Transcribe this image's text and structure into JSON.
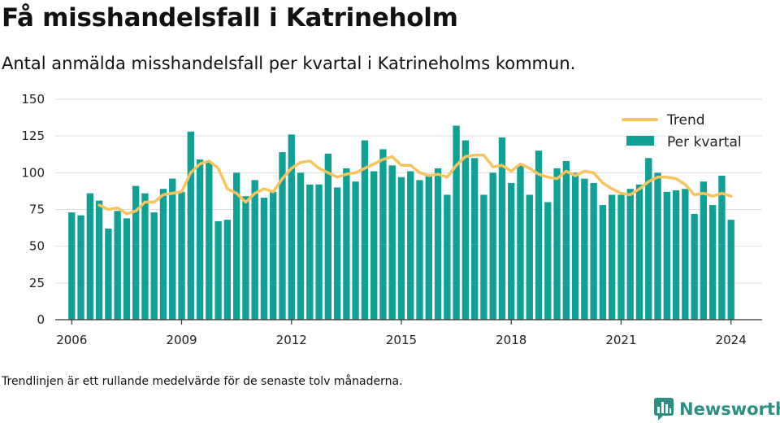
{
  "title": "Få misshandelsfall i Katrineholm",
  "subtitle": "Antal anmälda misshandelsfall per kvartal i Katrineholms kommun.",
  "footnote": "Trendlinjen är ett rullande medelvärde för de senaste tolv månaderna.",
  "brand": "Newsworthy",
  "colors": {
    "bar": "#0fa195",
    "trend": "#f7c55c",
    "grid": "#dddddd",
    "axis": "#333333"
  },
  "chart_data": {
    "type": "bar",
    "title": "Få misshandelsfall i Katrineholm",
    "ylim": [
      0,
      150
    ],
    "yticks": [
      0,
      25,
      50,
      75,
      100,
      125,
      150
    ],
    "xlim": [
      2005.55,
      2024.85
    ],
    "xticks": [
      "2006",
      "2009",
      "2012",
      "2015",
      "2018",
      "2021",
      "2024"
    ],
    "legend": "top-right",
    "grid": "horizontal",
    "x": [
      2006.0,
      2006.25,
      2006.5,
      2006.75,
      2007.0,
      2007.25,
      2007.5,
      2007.75,
      2008.0,
      2008.25,
      2008.5,
      2008.75,
      2009.0,
      2009.25,
      2009.5,
      2009.75,
      2010.0,
      2010.25,
      2010.5,
      2010.75,
      2011.0,
      2011.25,
      2011.5,
      2011.75,
      2012.0,
      2012.25,
      2012.5,
      2012.75,
      2013.0,
      2013.25,
      2013.5,
      2013.75,
      2014.0,
      2014.25,
      2014.5,
      2014.75,
      2015.0,
      2015.25,
      2015.5,
      2015.75,
      2016.0,
      2016.25,
      2016.5,
      2016.75,
      2017.0,
      2017.25,
      2017.5,
      2017.75,
      2018.0,
      2018.25,
      2018.5,
      2018.75,
      2019.0,
      2019.25,
      2019.5,
      2019.75,
      2020.0,
      2020.25,
      2020.5,
      2020.75,
      2021.0,
      2021.25,
      2021.5,
      2021.75,
      2022.0,
      2022.25,
      2022.5,
      2022.75,
      2023.0,
      2023.25,
      2023.5,
      2023.75,
      2024.0
    ],
    "series": [
      {
        "name": "Per kvartal",
        "values": [
          73,
          71,
          86,
          81,
          62,
          74,
          69,
          91,
          86,
          73,
          89,
          96,
          87,
          128,
          109,
          107,
          67,
          68,
          100,
          84,
          95,
          83,
          87,
          114,
          126,
          100,
          92,
          92,
          113,
          90,
          103,
          94,
          122,
          101,
          116,
          105,
          97,
          101,
          95,
          99,
          103,
          85,
          132,
          122,
          110,
          85,
          100,
          124,
          93,
          105,
          85,
          115,
          80,
          103,
          108,
          100,
          96,
          93,
          78,
          85,
          85,
          89,
          92,
          110,
          100,
          87,
          88,
          89,
          72,
          94,
          78,
          98,
          68
        ]
      },
      {
        "name": "Trend",
        "x": [
          2006.75,
          2007.0,
          2007.25,
          2007.5,
          2007.75,
          2008.0,
          2008.25,
          2008.5,
          2008.75,
          2009.0,
          2009.25,
          2009.5,
          2009.75,
          2010.0,
          2010.25,
          2010.5,
          2010.75,
          2011.0,
          2011.25,
          2011.5,
          2011.75,
          2012.0,
          2012.25,
          2012.5,
          2012.75,
          2013.0,
          2013.25,
          2013.5,
          2013.75,
          2014.0,
          2014.25,
          2014.5,
          2014.75,
          2015.0,
          2015.25,
          2015.5,
          2015.75,
          2016.0,
          2016.25,
          2016.5,
          2016.75,
          2017.0,
          2017.25,
          2017.5,
          2017.75,
          2018.0,
          2018.25,
          2018.5,
          2018.75,
          2019.0,
          2019.25,
          2019.5,
          2019.75,
          2020.0,
          2020.25,
          2020.5,
          2020.75,
          2021.0,
          2021.25,
          2021.5,
          2021.75,
          2022.0,
          2022.25,
          2022.5,
          2022.75,
          2023.0,
          2023.25,
          2023.5,
          2023.75,
          2024.0
        ],
        "values": [
          78,
          75,
          76,
          72,
          74,
          80,
          80,
          85,
          86,
          87,
          100,
          106,
          108,
          103,
          89,
          86,
          80,
          86,
          89,
          87,
          96,
          103,
          107,
          108,
          103,
          100,
          97,
          99,
          100,
          103,
          106,
          109,
          111,
          105,
          105,
          100,
          98,
          99,
          97,
          105,
          111,
          112,
          112,
          104,
          105,
          101,
          106,
          103,
          99,
          97,
          96,
          101,
          98,
          101,
          100,
          93,
          89,
          86,
          85,
          89,
          94,
          97,
          97,
          96,
          92,
          85,
          86,
          84,
          86,
          84
        ]
      }
    ]
  }
}
